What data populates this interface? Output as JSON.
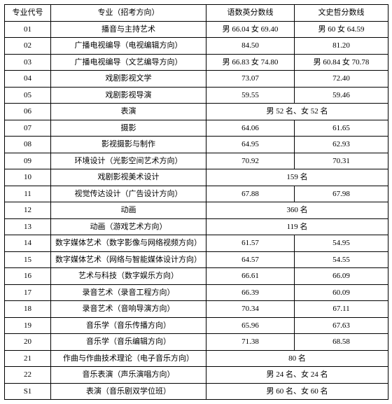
{
  "headers": {
    "code": "专业代号",
    "major": "专业（招考方向）",
    "score1": "语数英分数线",
    "score2": "文史哲分数线"
  },
  "rows": [
    {
      "code": "01",
      "major": "播音与主持艺术",
      "s1": "男 66.04 女 69.40",
      "s2": "男 60 女 64.59",
      "merged": false
    },
    {
      "code": "02",
      "major": "广播电视编导（电视编辑方向）",
      "s1": "84.50",
      "s2": "81.20",
      "merged": false
    },
    {
      "code": "03",
      "major": "广播电视编导（文艺编导方向）",
      "s1": "男 66.83 女 74.80",
      "s2": "男 60.84 女 70.78",
      "merged": false
    },
    {
      "code": "04",
      "major": "戏剧影视文学",
      "s1": "73.07",
      "s2": "72.40",
      "merged": false
    },
    {
      "code": "05",
      "major": "戏剧影视导演",
      "s1": "59.55",
      "s2": "59.46",
      "merged": false
    },
    {
      "code": "06",
      "major": "表演",
      "s1": "男 52 名、女 52 名",
      "s2": "",
      "merged": true
    },
    {
      "code": "07",
      "major": "摄影",
      "s1": "64.06",
      "s2": "61.65",
      "merged": false
    },
    {
      "code": "08",
      "major": "影视摄影与制作",
      "s1": "64.95",
      "s2": "62.93",
      "merged": false
    },
    {
      "code": "09",
      "major": "环境设计（光影空间艺术方向）",
      "s1": "70.92",
      "s2": "70.31",
      "merged": false
    },
    {
      "code": "10",
      "major": "戏剧影视美术设计",
      "s1": "159 名",
      "s2": "",
      "merged": true
    },
    {
      "code": "11",
      "major": "视觉传达设计（广告设计方向）",
      "s1": "67.88",
      "s2": "67.98",
      "merged": false
    },
    {
      "code": "12",
      "major": "动画",
      "s1": "360 名",
      "s2": "",
      "merged": true
    },
    {
      "code": "13",
      "major": "动画（游戏艺术方向）",
      "s1": "119 名",
      "s2": "",
      "merged": true
    },
    {
      "code": "14",
      "major": "数字媒体艺术（数字影像与网络视频方向）",
      "s1": "61.57",
      "s2": "54.95",
      "merged": false
    },
    {
      "code": "15",
      "major": "数字媒体艺术（网络与智能媒体设计方向）",
      "s1": "64.57",
      "s2": "54.55",
      "merged": false
    },
    {
      "code": "16",
      "major": "艺术与科技（数字娱乐方向）",
      "s1": "66.61",
      "s2": "66.09",
      "merged": false
    },
    {
      "code": "17",
      "major": "录音艺术（录音工程方向）",
      "s1": "66.39",
      "s2": "60.09",
      "merged": false
    },
    {
      "code": "18",
      "major": "录音艺术（音响导演方向）",
      "s1": "70.34",
      "s2": "67.11",
      "merged": false
    },
    {
      "code": "19",
      "major": "音乐学（音乐传播方向）",
      "s1": "65.96",
      "s2": "67.63",
      "merged": false
    },
    {
      "code": "20",
      "major": "音乐学（音乐编辑方向）",
      "s1": "71.38",
      "s2": "68.58",
      "merged": false
    },
    {
      "code": "21",
      "major": "作曲与作曲技术理论（电子音乐方向）",
      "s1": "80 名",
      "s2": "",
      "merged": true
    },
    {
      "code": "22",
      "major": "音乐表演（声乐演唱方向）",
      "s1": "男 24 名、女 24 名",
      "s2": "",
      "merged": true
    },
    {
      "code": "S1",
      "major": "表演（音乐剧双学位班）",
      "s1": "男 60 名、女 60 名",
      "s2": "",
      "merged": true
    }
  ]
}
